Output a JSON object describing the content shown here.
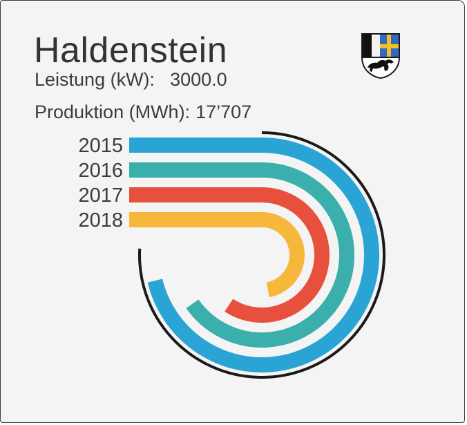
{
  "header": {
    "title": "Haldenstein",
    "power_label": "Leistung (kW):",
    "power_value": "3000.0",
    "production_label": "Produktion (MWh):",
    "production_value": "17’707"
  },
  "crest": {
    "icon": "graubuenden-coat-of-arms-icon"
  },
  "chart_data": {
    "type": "radial-bar",
    "title": "",
    "categories": [
      "2015",
      "2016",
      "2017",
      "2018"
    ],
    "series": [
      {
        "values": [
          0.95,
          0.87,
          0.79,
          0.63
        ]
      }
    ],
    "colors": [
      "#2aa3d5",
      "#3bafab",
      "#e7503c",
      "#f7b73b"
    ],
    "legend": "none",
    "grid": false
  }
}
